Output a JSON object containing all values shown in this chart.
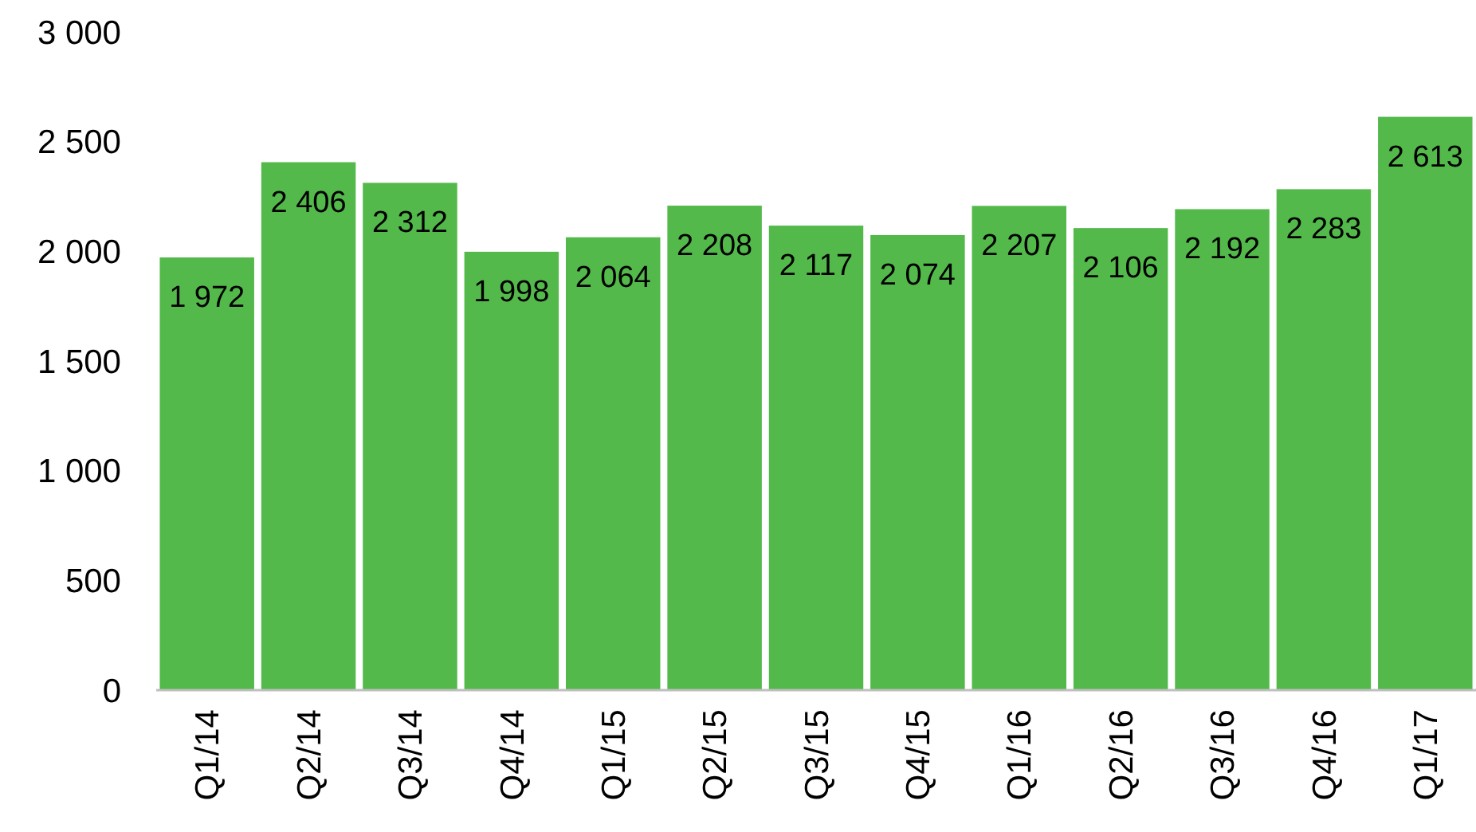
{
  "chart_data": {
    "type": "bar",
    "categories": [
      "Q1/14",
      "Q2/14",
      "Q3/14",
      "Q4/14",
      "Q1/15",
      "Q2/15",
      "Q3/15",
      "Q4/15",
      "Q1/16",
      "Q2/16",
      "Q3/16",
      "Q4/16",
      "Q1/17"
    ],
    "values": [
      1972,
      2406,
      2312,
      1998,
      2064,
      2208,
      2117,
      2074,
      2207,
      2106,
      2192,
      2283,
      2613
    ],
    "value_labels": [
      "1 972",
      "2 406",
      "2 312",
      "1 998",
      "2 064",
      "2 208",
      "2 117",
      "2 074",
      "2 207",
      "2 106",
      "2 192",
      "2 283",
      "2 613"
    ],
    "color": "#53b94a",
    "ylim": [
      0,
      3000
    ],
    "yticks": [
      {
        "value": 0,
        "label": "0"
      },
      {
        "value": 500,
        "label": "500"
      },
      {
        "value": 1000,
        "label": "1 000"
      },
      {
        "value": 1500,
        "label": "1 500"
      },
      {
        "value": 2000,
        "label": "2 000"
      },
      {
        "value": 2500,
        "label": "2 500"
      },
      {
        "value": 3000,
        "label": "3 000"
      }
    ]
  }
}
